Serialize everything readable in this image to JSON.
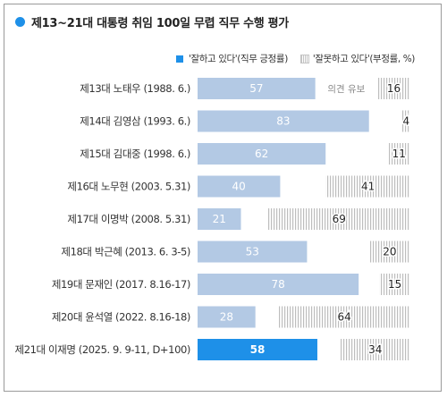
{
  "title": "제13~21대 대통령 취임 100일 무렵 직무 수행 평가",
  "legend": {
    "positive": "'잘하고 있다'(직무 긍정률)",
    "negative": "'잘못하고 있다'(부정률, %)"
  },
  "colors": {
    "positive": "#b3c9e4",
    "highlight": "#1e90e8",
    "negative_hatch": "#bdbdbd"
  },
  "chart_data": {
    "type": "bar",
    "orientation": "horizontal",
    "stacked": false,
    "categories": [
      "제13대 노태우 (1988. 6.)",
      "제14대 김영삼 (1993. 6.)",
      "제15대 김대중 (1998. 6.)",
      "제16대 노무현 (2003. 5.31)",
      "제17대 이명박 (2008. 5.31)",
      "제18대 박근혜 (2013. 6. 3-5)",
      "제19대 문재인 (2017. 8.16-17)",
      "제20대 윤석열 (2022. 8.16-18)",
      "제21대 이재명 (2025. 9. 9-11, D+100)"
    ],
    "series": [
      {
        "name": "'잘하고 있다'(직무 긍정률)",
        "values": [
          57,
          83,
          62,
          40,
          21,
          53,
          78,
          28,
          58
        ]
      },
      {
        "name": "'잘못하고 있다'(부정률, %)",
        "values": [
          16,
          4,
          11,
          41,
          69,
          20,
          15,
          64,
          34
        ]
      }
    ],
    "annotations": [
      {
        "category": "제13대 노태우 (1988. 6.)",
        "text": "의견 유보"
      }
    ],
    "highlight_category": "제21대 이재명 (2025. 9. 9-11, D+100)",
    "xlim": [
      0,
      100
    ],
    "grid": false,
    "legend_position": "top-right"
  }
}
